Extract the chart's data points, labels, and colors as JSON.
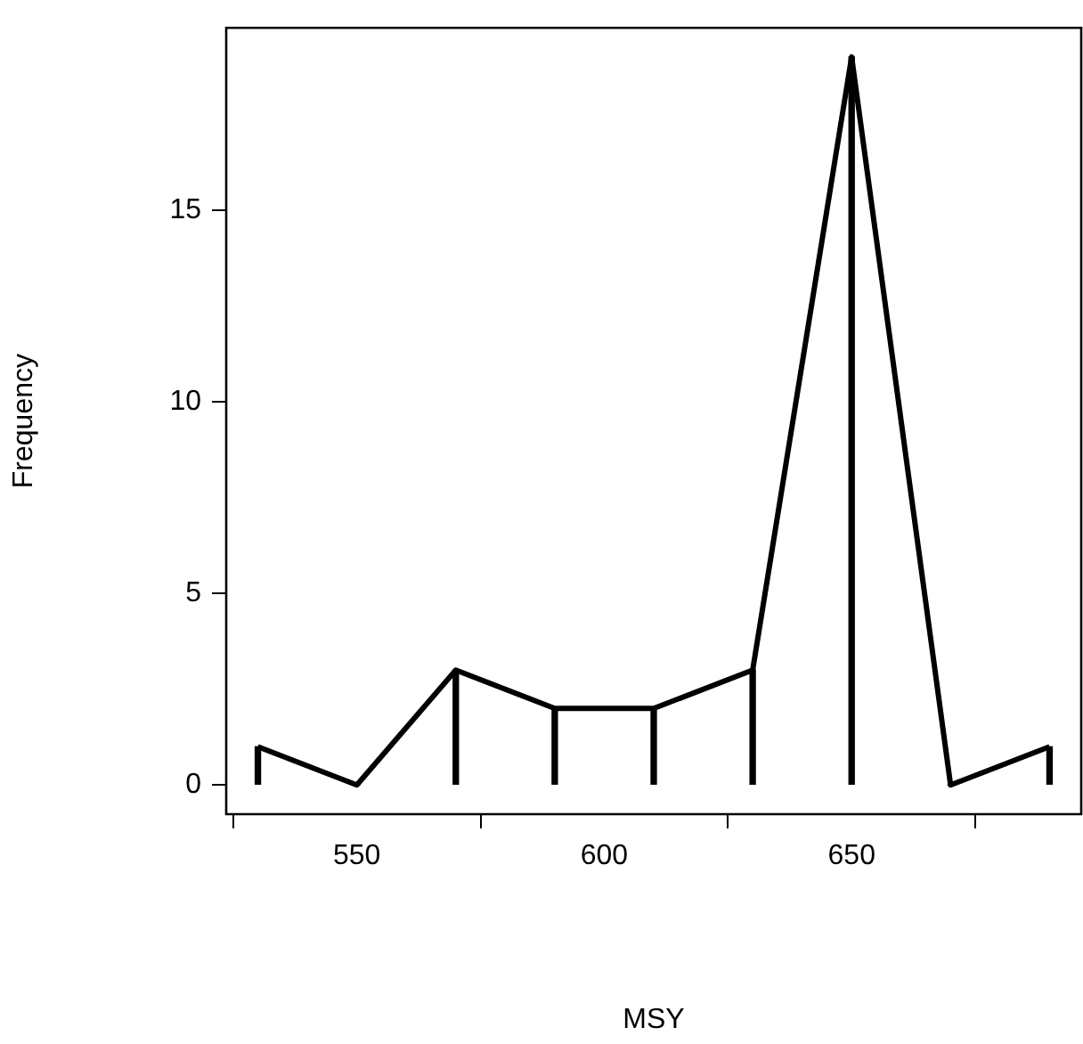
{
  "chart_data": {
    "type": "line",
    "xlabel": "MSY",
    "ylabel": "Frequency",
    "x": [
      530,
      550,
      570,
      590,
      610,
      630,
      650,
      670,
      690
    ],
    "series": [
      {
        "color": "#000000",
        "values": [
          1,
          0,
          3,
          2,
          2,
          3,
          19,
          0,
          1
        ]
      },
      {
        "type": "bar",
        "color": "#000000",
        "values": [
          1,
          0,
          3,
          2,
          2,
          3,
          19,
          0,
          1
        ]
      }
    ],
    "xlim": [
      523.6,
      696.4
    ],
    "xticks": [
      550,
      600,
      650
    ],
    "ylim": [
      -0.76,
      19.76
    ],
    "yticks": [
      0,
      5,
      10,
      15
    ],
    "grid": false,
    "legend": false,
    "marker": "none",
    "line_style": "solid"
  }
}
